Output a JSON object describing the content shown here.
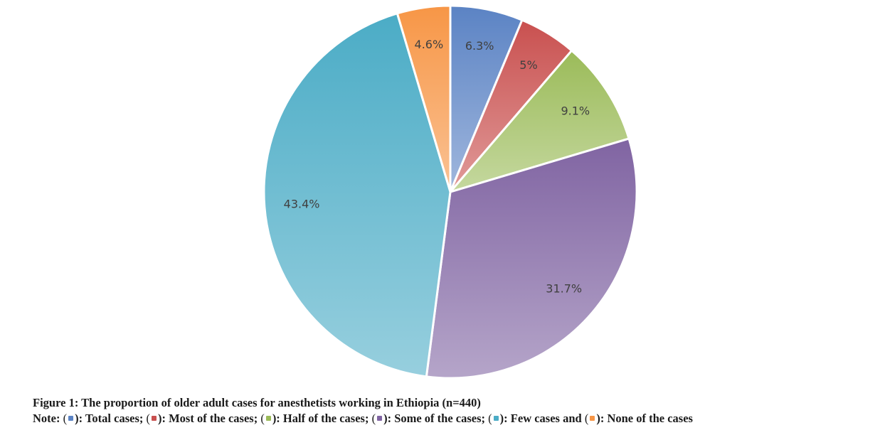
{
  "chart_data": {
    "type": "pie",
    "categories": [
      "Total cases",
      "Most of the cases",
      "Half of the cases",
      "Some of the cases",
      "Few cases",
      "None of the cases"
    ],
    "values": [
      6.3,
      5,
      9.1,
      31.7,
      43.4,
      4.6
    ],
    "labels": [
      "6.3%",
      "5%",
      "9.1%",
      "31.7%",
      "43.4%",
      "4.6%"
    ],
    "colors": [
      "#5b83c4",
      "#c9504f",
      "#9bbb59",
      "#8064a2",
      "#4bacc6",
      "#f79646"
    ],
    "start_angle_deg": 0,
    "direction": "clockwise",
    "legend": "caption-note-below"
  },
  "caption": {
    "title": "Figure 1: The proportion of older adult cases for anesthetists working in Ethiopia (n=440)",
    "note_prefix": "Note:",
    "items": [
      {
        "text": "): Total cases;"
      },
      {
        "text": "): Most of the cases;"
      },
      {
        "text": "): Half of the cases;"
      },
      {
        "text": "): Some of the cases;"
      },
      {
        "text": "): Few cases and"
      },
      {
        "text": "): None of the cases"
      }
    ]
  }
}
